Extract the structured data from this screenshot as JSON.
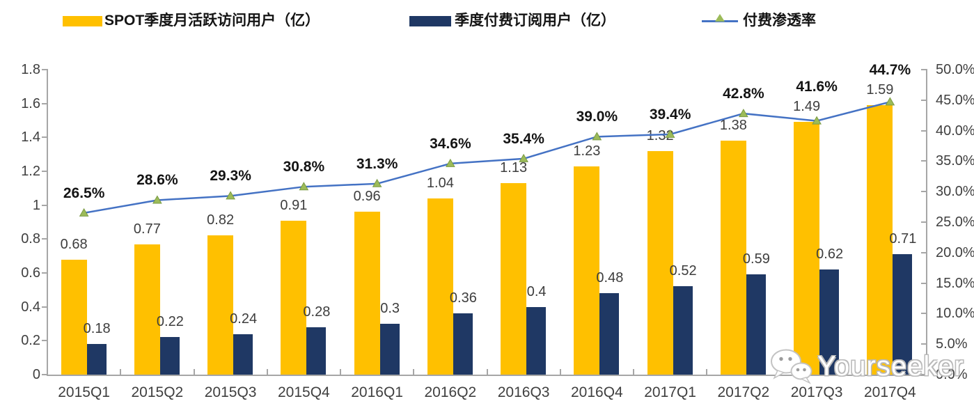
{
  "legend": {
    "items": [
      {
        "label": "SPOT季度月活跃访问用户（亿）",
        "swatch": "bar",
        "color": "#FFC000"
      },
      {
        "label": "季度付费订阅用户（亿）",
        "swatch": "bar",
        "color": "#1F3864"
      },
      {
        "label": "付费渗透率",
        "swatch": "line-marker",
        "line_color": "#4472C4",
        "marker_color": "#9CBB59"
      }
    ]
  },
  "chart_data": {
    "type": "combo-bar-line",
    "categories": [
      "2015Q1",
      "2015Q2",
      "2015Q3",
      "2015Q4",
      "2016Q1",
      "2016Q2",
      "2016Q3",
      "2016Q4",
      "2017Q1",
      "2017Q2",
      "2017Q3",
      "2017Q4"
    ],
    "series": [
      {
        "name": "SPOT季度月活跃访问用户（亿）",
        "type": "bar",
        "axis": "left",
        "color": "#FFC000",
        "values": [
          0.68,
          0.77,
          0.82,
          0.91,
          0.96,
          1.04,
          1.13,
          1.23,
          1.32,
          1.38,
          1.49,
          1.59
        ],
        "labels": [
          "0.68",
          "0.77",
          "0.82",
          "0.91",
          "0.96",
          "1.04",
          "1.13",
          "1.23",
          "1.32",
          "1.38",
          "1.49",
          "1.59"
        ]
      },
      {
        "name": "季度付费订阅用户（亿）",
        "type": "bar",
        "axis": "left",
        "color": "#1F3864",
        "values": [
          0.18,
          0.22,
          0.24,
          0.28,
          0.3,
          0.36,
          0.4,
          0.48,
          0.52,
          0.59,
          0.62,
          0.71
        ],
        "labels": [
          "0.18",
          "0.22",
          "0.24",
          "0.28",
          "0.3",
          "0.36",
          "0.4",
          "0.48",
          "0.52",
          "0.59",
          "0.62",
          "0.71"
        ]
      },
      {
        "name": "付费渗透率",
        "type": "line",
        "axis": "right",
        "color": "#4472C4",
        "marker": "triangle",
        "marker_color": "#9CBB59",
        "values": [
          26.5,
          28.6,
          29.3,
          30.8,
          31.3,
          34.6,
          35.4,
          39.0,
          39.4,
          42.8,
          41.6,
          44.7
        ],
        "labels": [
          "26.5%",
          "28.6%",
          "29.3%",
          "30.8%",
          "31.3%",
          "34.6%",
          "35.4%",
          "39.0%",
          "39.4%",
          "42.8%",
          "41.6%",
          "44.7%"
        ]
      }
    ],
    "left_axis": {
      "min": 0,
      "max": 1.8,
      "step": 0.2,
      "tick_labels": [
        "0",
        "0.2",
        "0.4",
        "0.6",
        "0.8",
        "1",
        "1.2",
        "1.4",
        "1.6",
        "1.8"
      ]
    },
    "right_axis": {
      "min": 0,
      "max": 50,
      "step": 5,
      "tick_labels": [
        "0.0%",
        "5.0%",
        "10.0%",
        "15.0%",
        "20.0%",
        "25.0%",
        "30.0%",
        "35.0%",
        "40.0%",
        "45.0%",
        "50.0%"
      ]
    },
    "grid": false,
    "legend_position": "top"
  },
  "watermark": {
    "text": "Yourseeker",
    "icon": "wechat-logo-icon"
  }
}
